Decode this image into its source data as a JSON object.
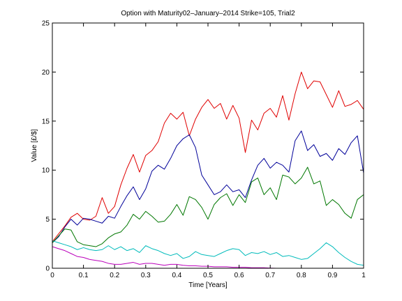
{
  "chart_data": {
    "type": "line",
    "title": "Option with Maturity02–January–2014 Strike=105, Trial2",
    "xlabel": "Time [Years]",
    "ylabel": "Value [£/$]",
    "xlim": [
      0,
      1
    ],
    "ylim": [
      0,
      25
    ],
    "xticks": [
      "0",
      "0.1",
      "0.2",
      "0.3",
      "0.4",
      "0.5",
      "0.6",
      "0.7",
      "0.8",
      "0.9",
      "1"
    ],
    "yticks": [
      "0",
      "5",
      "10",
      "15",
      "20",
      "25"
    ],
    "grid": false,
    "series": [
      {
        "name": "red",
        "color": "#e00000",
        "x": [
          0,
          0.02,
          0.04,
          0.06,
          0.08,
          0.1,
          0.12,
          0.14,
          0.16,
          0.18,
          0.2,
          0.22,
          0.24,
          0.26,
          0.28,
          0.3,
          0.32,
          0.34,
          0.36,
          0.38,
          0.4,
          0.42,
          0.44,
          0.46,
          0.48,
          0.5,
          0.52,
          0.54,
          0.56,
          0.58,
          0.6,
          0.62,
          0.64,
          0.66,
          0.68,
          0.7,
          0.72,
          0.74,
          0.76,
          0.78,
          0.8,
          0.82,
          0.84,
          0.86,
          0.88,
          0.9,
          0.92,
          0.94,
          0.96,
          0.98,
          1.0
        ],
        "values": [
          2.7,
          3.5,
          4.3,
          5.2,
          5.6,
          5.0,
          4.9,
          5.3,
          7.2,
          5.6,
          6.3,
          8.5,
          10.2,
          11.6,
          9.8,
          11.5,
          12.0,
          12.9,
          14.8,
          15.8,
          15.2,
          15.9,
          13.5,
          15.2,
          16.4,
          17.2,
          16.3,
          16.8,
          15.2,
          16.6,
          15.3,
          11.8,
          15.1,
          14.1,
          15.8,
          16.3,
          15.4,
          17.6,
          15.1,
          17.8,
          20.0,
          18.3,
          19.1,
          19.0,
          17.7,
          16.4,
          18.1,
          16.5,
          16.7,
          17.1,
          16.2
        ]
      },
      {
        "name": "blue",
        "color": "#000099",
        "x": [
          0,
          0.02,
          0.04,
          0.06,
          0.08,
          0.1,
          0.12,
          0.14,
          0.16,
          0.18,
          0.2,
          0.22,
          0.24,
          0.26,
          0.28,
          0.3,
          0.32,
          0.34,
          0.36,
          0.38,
          0.4,
          0.42,
          0.44,
          0.46,
          0.48,
          0.5,
          0.52,
          0.54,
          0.56,
          0.58,
          0.6,
          0.62,
          0.64,
          0.66,
          0.68,
          0.7,
          0.72,
          0.74,
          0.76,
          0.78,
          0.8,
          0.82,
          0.84,
          0.86,
          0.88,
          0.9,
          0.92,
          0.94,
          0.96,
          0.98,
          1.0
        ],
        "values": [
          2.6,
          3.2,
          4.2,
          5.0,
          4.4,
          5.1,
          5.0,
          4.8,
          4.6,
          5.3,
          5.1,
          6.3,
          7.4,
          8.3,
          7.0,
          8.1,
          9.9,
          10.5,
          10.1,
          11.2,
          12.5,
          13.2,
          13.6,
          12.3,
          9.5,
          8.5,
          7.5,
          7.8,
          8.5,
          7.8,
          8.0,
          7.2,
          9.0,
          10.5,
          11.2,
          10.2,
          10.8,
          10.5,
          9.8,
          13.0,
          14.0,
          12.0,
          12.6,
          11.4,
          11.7,
          11.0,
          12.2,
          11.6,
          12.8,
          13.5,
          9.7
        ]
      },
      {
        "name": "green",
        "color": "#007700",
        "x": [
          0,
          0.02,
          0.04,
          0.06,
          0.08,
          0.1,
          0.12,
          0.14,
          0.16,
          0.18,
          0.2,
          0.22,
          0.24,
          0.26,
          0.28,
          0.3,
          0.32,
          0.34,
          0.36,
          0.38,
          0.4,
          0.42,
          0.44,
          0.46,
          0.48,
          0.5,
          0.52,
          0.54,
          0.56,
          0.58,
          0.6,
          0.62,
          0.64,
          0.66,
          0.68,
          0.7,
          0.72,
          0.74,
          0.76,
          0.78,
          0.8,
          0.82,
          0.84,
          0.86,
          0.88,
          0.9,
          0.92,
          0.94,
          0.96,
          0.98,
          1.0
        ],
        "values": [
          2.6,
          3.3,
          4.0,
          3.9,
          2.7,
          2.4,
          2.3,
          2.2,
          2.5,
          3.1,
          3.5,
          3.7,
          4.4,
          5.5,
          5.0,
          5.8,
          5.3,
          4.7,
          4.8,
          5.5,
          6.5,
          5.4,
          7.3,
          7.0,
          6.2,
          5.0,
          6.5,
          7.2,
          7.6,
          6.4,
          7.5,
          6.7,
          8.8,
          9.2,
          7.5,
          8.2,
          7.0,
          9.5,
          9.3,
          8.6,
          9.2,
          10.3,
          8.6,
          8.9,
          6.4,
          7.0,
          6.5,
          5.6,
          5.1,
          7.0,
          7.5
        ]
      },
      {
        "name": "cyan",
        "color": "#00bbbb",
        "x": [
          0,
          0.02,
          0.04,
          0.06,
          0.08,
          0.1,
          0.12,
          0.14,
          0.16,
          0.18,
          0.2,
          0.22,
          0.24,
          0.26,
          0.28,
          0.3,
          0.32,
          0.34,
          0.36,
          0.38,
          0.4,
          0.42,
          0.44,
          0.46,
          0.48,
          0.5,
          0.52,
          0.54,
          0.56,
          0.58,
          0.6,
          0.62,
          0.64,
          0.66,
          0.68,
          0.7,
          0.72,
          0.74,
          0.76,
          0.78,
          0.8,
          0.82,
          0.84,
          0.86,
          0.88,
          0.9,
          0.92,
          0.94,
          0.96,
          0.98,
          1.0
        ],
        "values": [
          2.8,
          2.6,
          2.4,
          2.2,
          1.9,
          2.1,
          1.9,
          1.8,
          1.9,
          2.3,
          1.9,
          2.2,
          1.8,
          2.0,
          1.6,
          2.3,
          2.0,
          1.8,
          1.5,
          1.3,
          1.5,
          1.0,
          1.2,
          1.7,
          1.4,
          1.3,
          1.2,
          1.5,
          1.8,
          2.0,
          1.9,
          1.3,
          1.6,
          1.5,
          1.7,
          1.4,
          1.6,
          1.2,
          1.3,
          1.1,
          0.9,
          1.0,
          1.5,
          2.0,
          2.6,
          2.2,
          1.6,
          1.1,
          0.7,
          0.4,
          0.3
        ]
      },
      {
        "name": "magenta",
        "color": "#bb00bb",
        "x": [
          0,
          0.02,
          0.04,
          0.06,
          0.08,
          0.1,
          0.12,
          0.14,
          0.16,
          0.18,
          0.2,
          0.22,
          0.24,
          0.26,
          0.28,
          0.3,
          0.32,
          0.34,
          0.36,
          0.38,
          0.4,
          0.42,
          0.44,
          0.46,
          0.48,
          0.5,
          0.52,
          0.54,
          0.56,
          0.58,
          0.6,
          0.62,
          0.64,
          0.66,
          0.68,
          0.7,
          0.72
        ],
        "values": [
          2.2,
          2.0,
          1.8,
          1.5,
          1.2,
          1.1,
          0.9,
          0.8,
          0.7,
          0.5,
          0.4,
          0.4,
          0.5,
          0.6,
          0.4,
          0.5,
          0.5,
          0.4,
          0.3,
          0.4,
          0.4,
          0.3,
          0.25,
          0.25,
          0.2,
          0.2,
          0.15,
          0.15,
          0.15,
          0.1,
          0.1,
          0.1,
          0.05,
          0.05,
          0.05,
          0.02,
          0.0
        ]
      }
    ]
  }
}
